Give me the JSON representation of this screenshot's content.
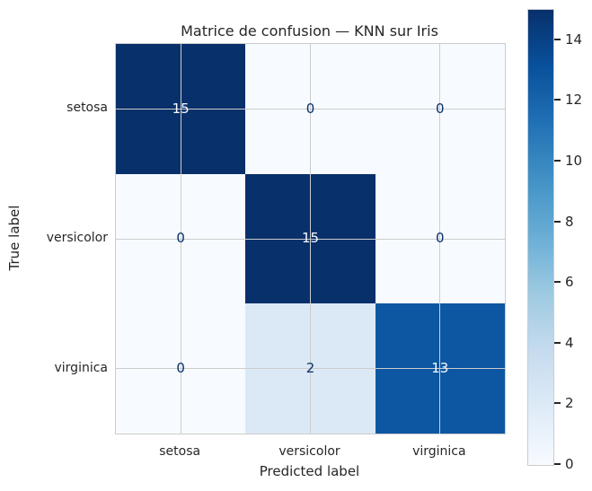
{
  "chart_data": {
    "type": "heatmap",
    "title": "Matrice de confusion — KNN sur Iris",
    "xlabel": "Predicted label",
    "ylabel": "True label",
    "categories": [
      "setosa",
      "versicolor",
      "virginica"
    ],
    "matrix": [
      [
        15,
        0,
        0
      ],
      [
        0,
        15,
        0
      ],
      [
        0,
        2,
        13
      ]
    ],
    "vmin": 0,
    "vmax": 15,
    "colorbar_ticks": [
      0,
      2,
      4,
      6,
      8,
      10,
      12,
      14
    ],
    "colorbar_position": "right",
    "colormap": "Blues",
    "colormap_stops": [
      "#f7fbff",
      "#deebf7",
      "#c6dbef",
      "#9ecae1",
      "#6baed6",
      "#4292c6",
      "#2171b5",
      "#08519c",
      "#08306b"
    ],
    "cell_colors": [
      [
        "#08306b",
        "#f7fbff",
        "#f7fbff"
      ],
      [
        "#f7fbff",
        "#08306b",
        "#f7fbff"
      ],
      [
        "#f7fbff",
        "#dbe9f6",
        "#0d57a2"
      ]
    ],
    "cell_text_colors": [
      [
        "#f7fbff",
        "#08306b",
        "#08306b"
      ],
      [
        "#08306b",
        "#f7fbff",
        "#08306b"
      ],
      [
        "#08306b",
        "#08306b",
        "#f7fbff"
      ]
    ],
    "grid": true,
    "grid_color": "#cccccc",
    "text_color": "#262626"
  }
}
